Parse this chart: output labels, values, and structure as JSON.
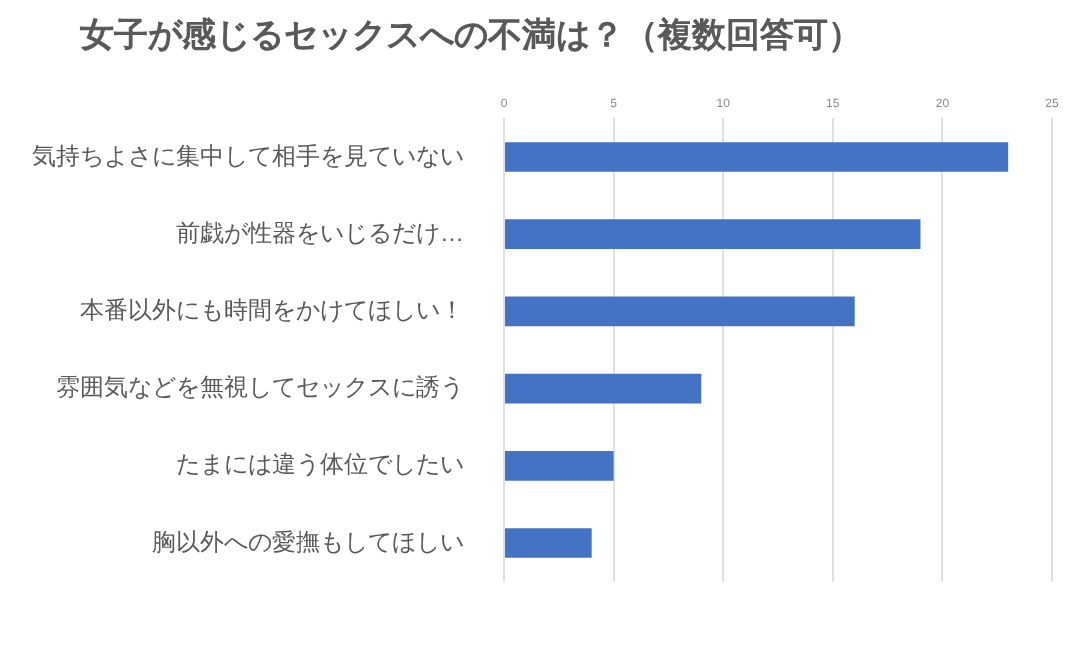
{
  "chart_data": {
    "type": "bar",
    "orientation": "horizontal",
    "title": "女子が感じるセックスへの不満は？（複数回答可）",
    "categories": [
      "気持ちよさに集中して相手を見ていない",
      "前戯が性器をいじるだけ…",
      "本番以外にも時間をかけてほしい！",
      "雰囲気などを無視してセックスに誘う",
      "たまには違う体位でしたい",
      "胸以外への愛撫もしてほしい"
    ],
    "values": [
      23,
      19,
      16,
      9,
      5,
      4
    ],
    "color": "#4472c4",
    "xlim": [
      0,
      25
    ],
    "xticks": [
      0,
      5,
      10,
      15,
      20,
      25
    ],
    "grid": "x",
    "legend": false
  }
}
